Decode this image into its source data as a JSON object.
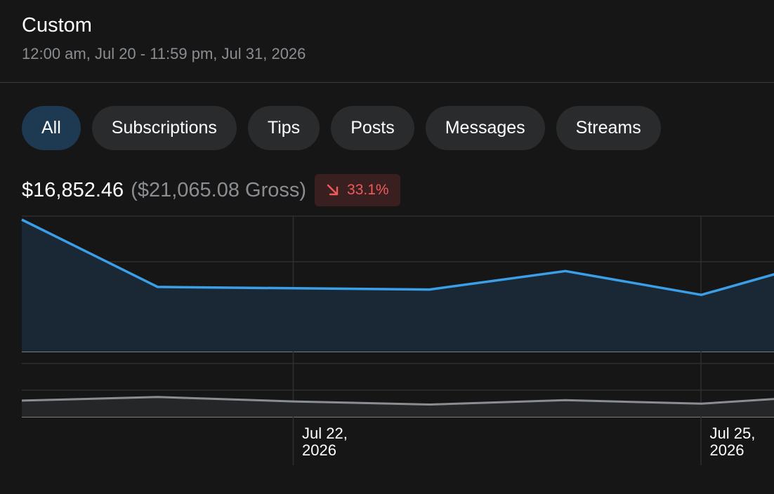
{
  "header": {
    "title": "Custom",
    "date_range": "12:00 am, Jul 20 - 11:59 pm, Jul 31, 2026"
  },
  "filters": [
    {
      "label": "All",
      "active": true
    },
    {
      "label": "Subscriptions",
      "active": false
    },
    {
      "label": "Tips",
      "active": false
    },
    {
      "label": "Posts",
      "active": false
    },
    {
      "label": "Messages",
      "active": false
    },
    {
      "label": "Streams",
      "active": false
    }
  ],
  "summary": {
    "net": "$16,852.46",
    "gross": "($21,065.08 Gross)",
    "change": "33.1%",
    "change_direction": "down",
    "change_color": "#ef5b5b"
  },
  "chart_data": {
    "type": "area",
    "x": [
      "2026-07-20",
      "2026-07-21",
      "2026-07-22",
      "2026-07-23",
      "2026-07-24",
      "2026-07-25",
      "2026-07-26"
    ],
    "tick_labels": [
      {
        "x": "2026-07-22",
        "line1": "Jul 22,",
        "line2": "2026"
      },
      {
        "x": "2026-07-25",
        "line1": "Jul 25,",
        "line2": "2026"
      }
    ],
    "series": [
      {
        "values": [
          1.0,
          0.49,
          0.48,
          0.47,
          0.61,
          0.43,
          0.72
        ],
        "color": "#3b9fe8",
        "panel": "main"
      },
      {
        "values": [
          0.78,
          0.95,
          0.74,
          0.59,
          0.8,
          0.63,
          1.05
        ],
        "color": "#8a8d91",
        "panel": "secondary"
      }
    ],
    "grid": true
  }
}
